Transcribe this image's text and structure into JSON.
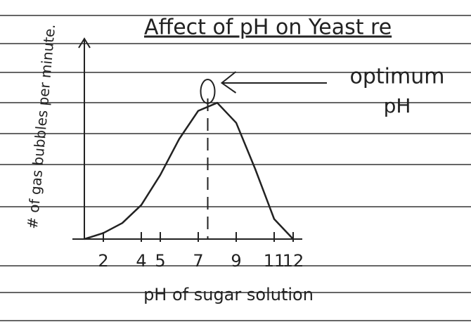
{
  "chart_data": {
    "type": "line",
    "title": "Affect of pH on Yeast re",
    "xlabel": "pH of sugar solution",
    "ylabel": "# of gas bubbles per minute.",
    "x": [
      1,
      2,
      3,
      4,
      5,
      6,
      7,
      8,
      9,
      10,
      11,
      12
    ],
    "values": [
      0,
      0.3,
      0.8,
      1.7,
      3.2,
      5,
      6.4,
      6.8,
      5.8,
      3.5,
      1,
      0
    ],
    "color": "#222222",
    "xlim": [
      1,
      12.5
    ],
    "ylim": [
      0,
      10
    ],
    "xticks": [
      2,
      4,
      5,
      7,
      9,
      11,
      12
    ],
    "annotation": {
      "lines": [
        "optimum",
        "pH"
      ],
      "x": 7.5
    }
  }
}
